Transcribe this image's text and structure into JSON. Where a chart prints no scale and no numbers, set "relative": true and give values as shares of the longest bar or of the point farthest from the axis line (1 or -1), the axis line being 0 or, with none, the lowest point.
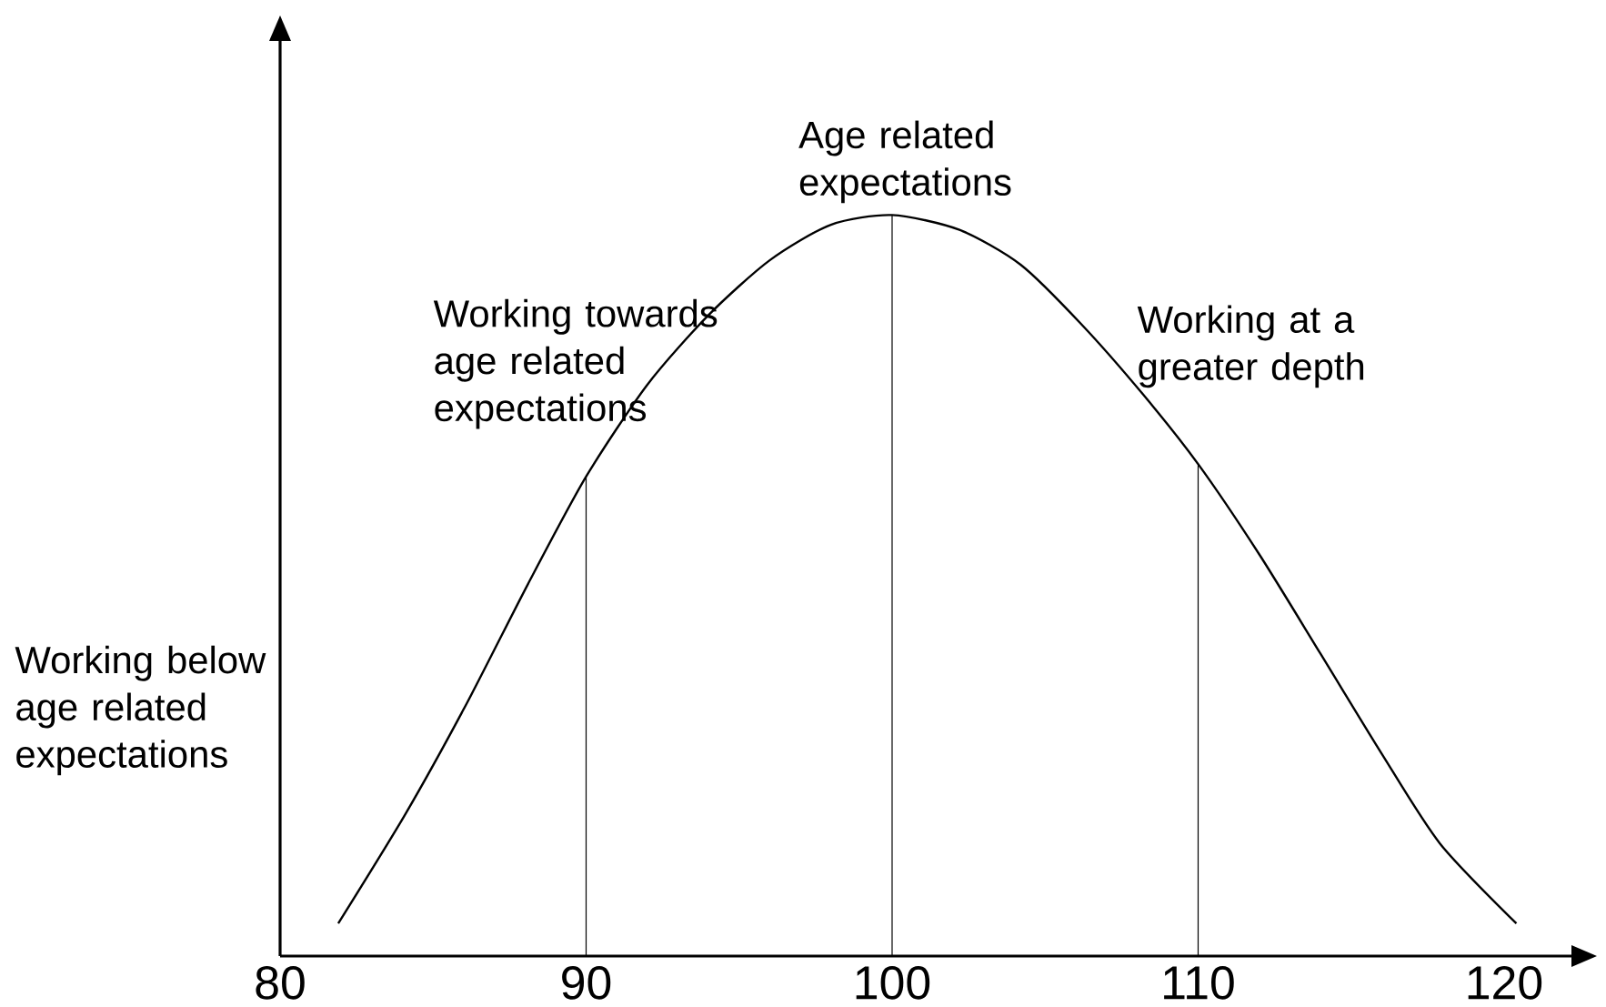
{
  "chart_data": {
    "type": "line",
    "relative": true,
    "xlim": [
      80,
      122.2
    ],
    "xticks": [
      80,
      90,
      100,
      110,
      120
    ],
    "series": [
      {
        "color": "#000000",
        "x": [
          81.9,
          84.1,
          86.1,
          88.1,
          90,
          92,
          94,
          96,
          98,
          100,
          102.2,
          104.2,
          106.2,
          108.2,
          110,
          112,
          114,
          116,
          117.9,
          120.4
        ],
        "values": [
          0.044,
          0.192,
          0.341,
          0.502,
          0.647,
          0.771,
          0.865,
          0.939,
          0.987,
          1.0,
          0.98,
          0.933,
          0.852,
          0.758,
          0.664,
          0.542,
          0.408,
          0.273,
          0.152,
          0.044
        ]
      }
    ],
    "ref_lines": [
      {
        "axis": "x",
        "value": 90,
        "label": "Working towards age related expectations"
      },
      {
        "axis": "x",
        "value": 100,
        "label": "Age related expectations"
      },
      {
        "axis": "x",
        "value": 110,
        "label": "Working at a greater depth"
      }
    ],
    "annotations": [
      "Working below age related expectations"
    ]
  }
}
